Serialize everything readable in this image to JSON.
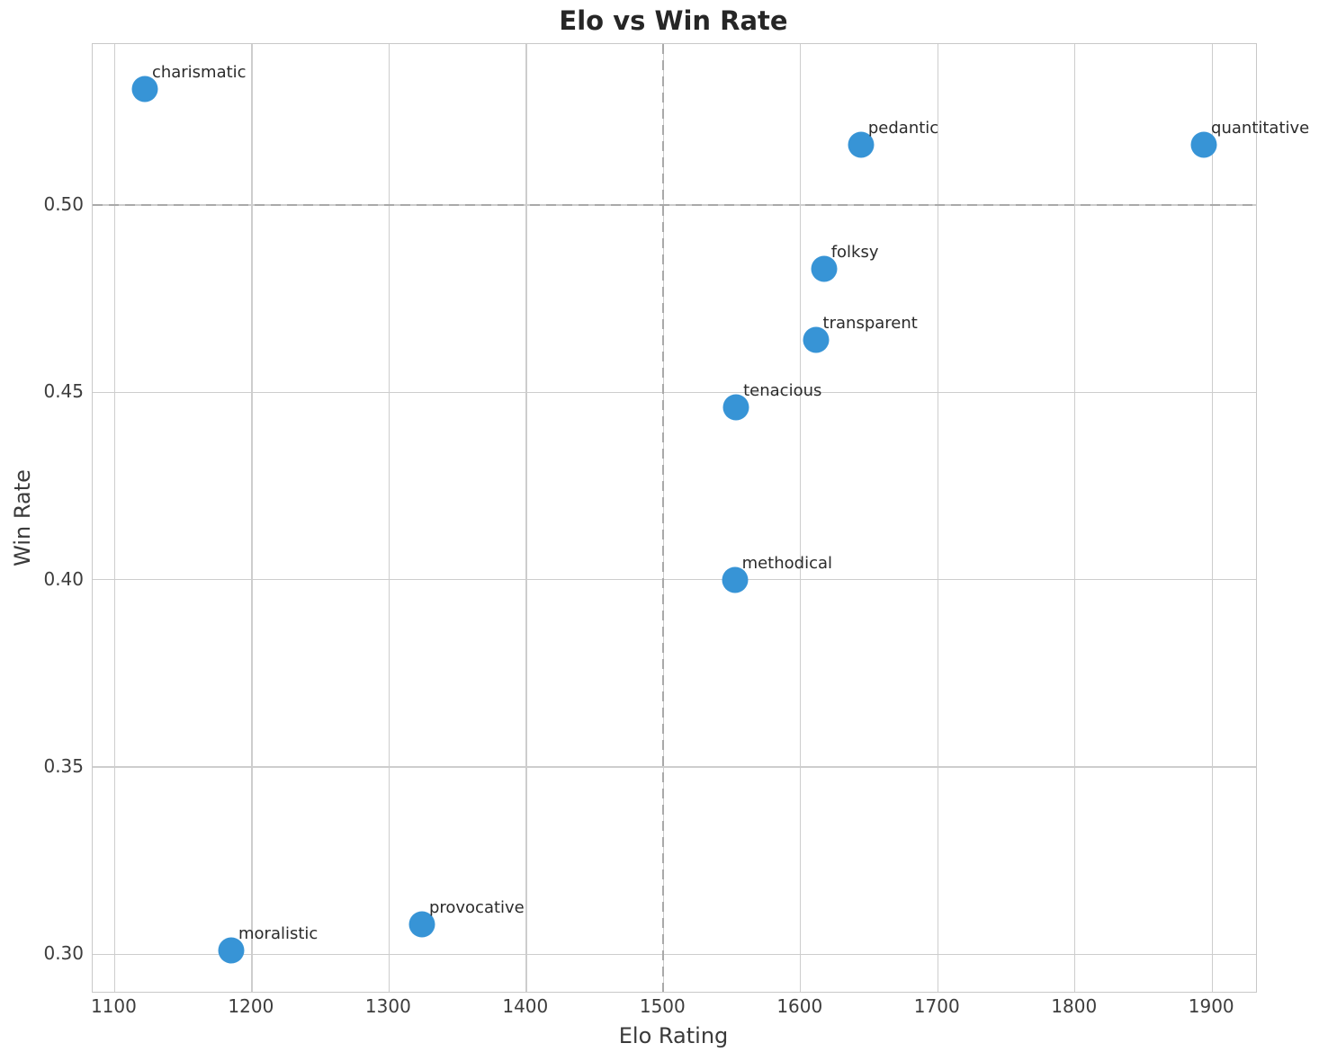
{
  "chart_data": {
    "type": "scatter",
    "title": "Elo vs Win Rate",
    "xlabel": "Elo Rating",
    "ylabel": "Win Rate",
    "xlim": [
      1084,
      1932
    ],
    "ylim": [
      0.29,
      0.543
    ],
    "xticks": [
      1100,
      1200,
      1300,
      1400,
      1500,
      1600,
      1700,
      1800,
      1900
    ],
    "xtick_labels": [
      "1100",
      "1200",
      "1300",
      "1400",
      "1500",
      "1600",
      "1700",
      "1800",
      "1900"
    ],
    "yticks": [
      0.3,
      0.35,
      0.4,
      0.45,
      0.5
    ],
    "ytick_labels": [
      "0.30",
      "0.35",
      "0.40",
      "0.45",
      "0.50"
    ],
    "grid": true,
    "legend": "none",
    "reference_lines": {
      "vline_x": 1500,
      "hline_y": 0.5,
      "style": "dashed",
      "color": "#a9a9a9"
    },
    "marker_color": "#3794d6",
    "points": [
      {
        "label": "charismatic",
        "x": 1122,
        "y": 0.531
      },
      {
        "label": "pedantic",
        "x": 1644,
        "y": 0.516
      },
      {
        "label": "quantitative",
        "x": 1894,
        "y": 0.516
      },
      {
        "label": "folksy",
        "x": 1617,
        "y": 0.483
      },
      {
        "label": "transparent",
        "x": 1611,
        "y": 0.464
      },
      {
        "label": "tenacious",
        "x": 1553,
        "y": 0.446
      },
      {
        "label": "methodical",
        "x": 1552,
        "y": 0.4
      },
      {
        "label": "provocative",
        "x": 1324,
        "y": 0.308
      },
      {
        "label": "moralistic",
        "x": 1185,
        "y": 0.301
      }
    ]
  },
  "colors": {
    "grid": "#cdcdcd",
    "spine": "#c8c8c8",
    "title": "#262626",
    "tick_label": "#3d3d3d",
    "axis_label": "#3a3a3a",
    "annotation": "#2b2b2b",
    "background": "#ffffff"
  }
}
